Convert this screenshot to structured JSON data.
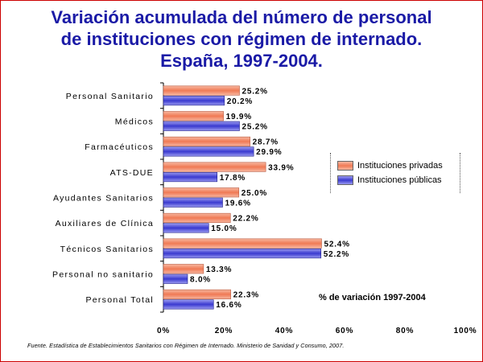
{
  "title_lines": [
    "Variación acumulada del número de personal",
    "de instituciones con régimen de internado.",
    "España, 1997-2004."
  ],
  "legend": {
    "privadas": "Instituciones privadas",
    "publicas": "Instituciones públicas"
  },
  "note": "% de variación 1997-2004",
  "source": "Fuente. Estadística de Establecimientos Sanitarios con Régimen de Internado. Ministerio de Sanidad y Consumo, 2007.",
  "colors": {
    "privadas": "#f08a6a",
    "publicas": "#4d4dd9",
    "title": "#1a1aa6",
    "frame": "#cc0000"
  },
  "chart_data": {
    "type": "bar",
    "orientation": "horizontal",
    "title": "Variación acumulada del número de personal de instituciones con régimen de internado. España, 1997-2004.",
    "categories": [
      "Personal Sanitario",
      "Médicos",
      "Farmacéuticos",
      "ATS-DUE",
      "Ayudantes Sanitarios",
      "Auxiliares de Clínica",
      "Técnicos Sanitarios",
      "Personal no sanitario",
      "Personal Total"
    ],
    "series": [
      {
        "name": "Instituciones privadas",
        "values": [
          25.2,
          19.9,
          28.7,
          33.9,
          25.0,
          22.2,
          52.4,
          13.3,
          22.3
        ],
        "labels": [
          "25.2%",
          "19.9%",
          "28.7%",
          "33.9%",
          "25.0%",
          "22.2%",
          "52.4%",
          "13.3%",
          "22.3%"
        ]
      },
      {
        "name": "Instituciones públicas",
        "values": [
          20.2,
          25.2,
          29.9,
          17.8,
          19.6,
          15.0,
          52.2,
          8.0,
          16.6
        ],
        "labels": [
          "20.2%",
          "25.2%",
          "29.9%",
          "17.8%",
          "19.6%",
          "15.0%",
          "52.2%",
          "8.0%",
          "16.6%"
        ]
      }
    ],
    "xlim": [
      0,
      100
    ],
    "xticks": [
      "0%",
      "20%",
      "40%",
      "60%",
      "80%",
      "100%"
    ],
    "grid": false,
    "legend_position": "right"
  }
}
